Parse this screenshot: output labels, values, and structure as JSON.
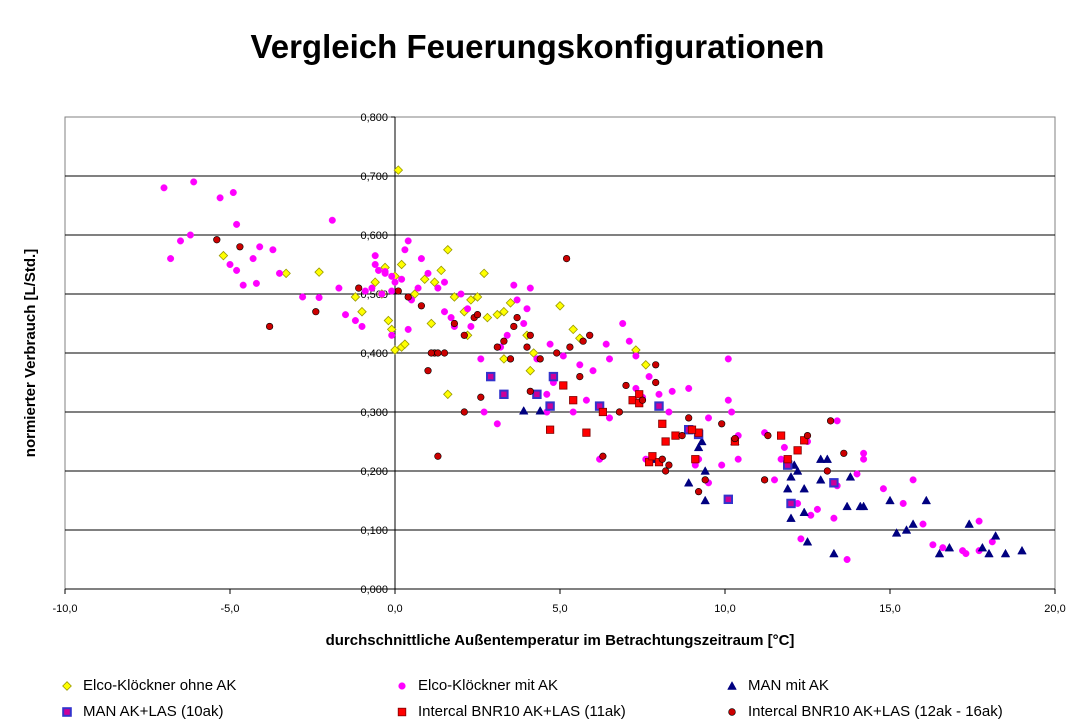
{
  "chart_data": {
    "type": "scatter",
    "title": "Vergleich Feuerungskonfigurationen",
    "xlabel": "durchschnittliche Außentemperatur im Betrachtungszeitraum [°C]",
    "ylabel": "normierter Verbrauch [L/Std.]",
    "xlim": [
      -10,
      20
    ],
    "ylim": [
      0,
      0.8
    ],
    "x_ticks": [
      -10,
      -5,
      0,
      5,
      10,
      15,
      20
    ],
    "x_tick_labels": [
      "-10,0",
      "-5,0",
      "0,0",
      "5,0",
      "10,0",
      "15,0",
      "20,0"
    ],
    "y_ticks": [
      0,
      0.1,
      0.2,
      0.3,
      0.4,
      0.5,
      0.6,
      0.7,
      0.8
    ],
    "y_tick_labels": [
      "0,000",
      "0,100",
      "0,200",
      "0,300",
      "0,400",
      "0,500",
      "0,600",
      "0,700",
      "0,800"
    ],
    "grid": "horizontal",
    "legend_position": "bottom",
    "series": [
      {
        "name": "Elco-Klöckner ohne AK",
        "marker": "diamond",
        "color": "#FFFF00",
        "stroke": "#999900",
        "points": [
          [
            0.1,
            0.71
          ],
          [
            -5.2,
            0.565
          ],
          [
            -3.3,
            0.535
          ],
          [
            -2.3,
            0.537
          ],
          [
            -1.2,
            0.495
          ],
          [
            -0.4,
            0.5
          ],
          [
            -1,
            0.47
          ],
          [
            -0.6,
            0.52
          ],
          [
            -0.3,
            0.545
          ],
          [
            0,
            0.53
          ],
          [
            0.2,
            0.55
          ],
          [
            -0.2,
            0.455
          ],
          [
            -0.1,
            0.44
          ],
          [
            0.2,
            0.41
          ],
          [
            0.3,
            0.415
          ],
          [
            0,
            0.405
          ],
          [
            0.6,
            0.5
          ],
          [
            0.9,
            0.525
          ],
          [
            1.2,
            0.52
          ],
          [
            1.4,
            0.54
          ],
          [
            1.6,
            0.575
          ],
          [
            1.8,
            0.495
          ],
          [
            2.1,
            0.47
          ],
          [
            2.3,
            0.49
          ],
          [
            2.5,
            0.495
          ],
          [
            2.7,
            0.535
          ],
          [
            2.8,
            0.46
          ],
          [
            3.1,
            0.465
          ],
          [
            3.3,
            0.47
          ],
          [
            3.5,
            0.485
          ],
          [
            2.2,
            0.43
          ],
          [
            1.1,
            0.45
          ],
          [
            1.6,
            0.33
          ],
          [
            3.3,
            0.39
          ],
          [
            4,
            0.43
          ],
          [
            4.2,
            0.4
          ],
          [
            4.1,
            0.37
          ],
          [
            5,
            0.48
          ],
          [
            5.4,
            0.44
          ],
          [
            5.6,
            0.425
          ],
          [
            7.3,
            0.405
          ],
          [
            7.6,
            0.38
          ]
        ]
      },
      {
        "name": "Elco-Klöckner mit AK",
        "marker": "circle",
        "color": "#FF00FF",
        "points": [
          [
            -7,
            0.68
          ],
          [
            -6.1,
            0.69
          ],
          [
            -4.9,
            0.672
          ],
          [
            -5.3,
            0.663
          ],
          [
            -6.8,
            0.56
          ],
          [
            -6.5,
            0.59
          ],
          [
            -6.2,
            0.6
          ],
          [
            -4.8,
            0.618
          ],
          [
            -4.8,
            0.54
          ],
          [
            -4.3,
            0.56
          ],
          [
            -4.2,
            0.518
          ],
          [
            -4.6,
            0.515
          ],
          [
            -5,
            0.55
          ],
          [
            -4.1,
            0.58
          ],
          [
            -3.7,
            0.575
          ],
          [
            -3.5,
            0.535
          ],
          [
            -1.9,
            0.625
          ],
          [
            -2.8,
            0.495
          ],
          [
            -2.3,
            0.494
          ],
          [
            -1.5,
            0.465
          ],
          [
            -1.2,
            0.455
          ],
          [
            -0.9,
            0.505
          ],
          [
            -1,
            0.445
          ],
          [
            -0.5,
            0.54
          ],
          [
            -0.3,
            0.538
          ],
          [
            -0.6,
            0.55
          ],
          [
            0.3,
            0.575
          ],
          [
            -0.1,
            0.43
          ],
          [
            0.5,
            0.49
          ],
          [
            0.7,
            0.51
          ],
          [
            1,
            0.535
          ],
          [
            1.3,
            0.51
          ],
          [
            1.7,
            0.46
          ],
          [
            1.8,
            0.445
          ],
          [
            0.4,
            0.44
          ],
          [
            0.4,
            0.59
          ],
          [
            -0.6,
            0.565
          ],
          [
            0.8,
            0.56
          ],
          [
            1.5,
            0.52
          ],
          [
            1.5,
            0.47
          ],
          [
            2,
            0.5
          ],
          [
            2.2,
            0.475
          ],
          [
            2.3,
            0.445
          ],
          [
            2.6,
            0.39
          ],
          [
            2.9,
            0.36
          ],
          [
            3.2,
            0.41
          ],
          [
            3.4,
            0.43
          ],
          [
            3.7,
            0.49
          ],
          [
            3.6,
            0.515
          ],
          [
            3.9,
            0.45
          ],
          [
            4,
            0.475
          ],
          [
            4.1,
            0.51
          ],
          [
            4.3,
            0.39
          ],
          [
            4.7,
            0.415
          ],
          [
            4.8,
            0.35
          ],
          [
            4.6,
            0.33
          ],
          [
            5.1,
            0.395
          ],
          [
            5.6,
            0.38
          ],
          [
            5.8,
            0.32
          ],
          [
            5.9,
            0.43
          ],
          [
            6,
            0.37
          ],
          [
            6.4,
            0.415
          ],
          [
            6.5,
            0.39
          ],
          [
            6.9,
            0.45
          ],
          [
            7.1,
            0.42
          ],
          [
            7.3,
            0.395
          ],
          [
            7.5,
            0.325
          ],
          [
            7.7,
            0.36
          ],
          [
            7.3,
            0.34
          ],
          [
            8,
            0.33
          ],
          [
            8.4,
            0.335
          ],
          [
            8.9,
            0.34
          ],
          [
            9.2,
            0.22
          ],
          [
            9.5,
            0.29
          ],
          [
            9.9,
            0.21
          ],
          [
            10.1,
            0.39
          ],
          [
            10.1,
            0.32
          ],
          [
            10.2,
            0.3
          ],
          [
            10.4,
            0.26
          ],
          [
            11.2,
            0.265
          ],
          [
            11.7,
            0.22
          ],
          [
            11.8,
            0.24
          ],
          [
            12.5,
            0.25
          ],
          [
            13.4,
            0.285
          ],
          [
            13.1,
            0.2
          ],
          [
            13.4,
            0.175
          ],
          [
            12.8,
            0.135
          ],
          [
            12.2,
            0.145
          ],
          [
            12.6,
            0.125
          ],
          [
            13.3,
            0.12
          ],
          [
            14,
            0.195
          ],
          [
            14.2,
            0.22
          ],
          [
            14.2,
            0.23
          ],
          [
            14.8,
            0.17
          ],
          [
            15.7,
            0.185
          ],
          [
            15.4,
            0.145
          ],
          [
            16,
            0.11
          ],
          [
            16.3,
            0.075
          ],
          [
            16.6,
            0.07
          ],
          [
            17.2,
            0.065
          ],
          [
            17.3,
            0.06
          ],
          [
            17.7,
            0.065
          ],
          [
            17.7,
            0.115
          ],
          [
            18.1,
            0.08
          ],
          [
            13.7,
            0.05
          ],
          [
            12.3,
            0.085
          ],
          [
            11.5,
            0.185
          ],
          [
            10.4,
            0.22
          ],
          [
            6.2,
            0.22
          ],
          [
            7.6,
            0.22
          ],
          [
            2.7,
            0.3
          ],
          [
            8.3,
            0.3
          ],
          [
            9.1,
            0.21
          ],
          [
            9.5,
            0.18
          ],
          [
            5.4,
            0.3
          ],
          [
            4.6,
            0.3
          ],
          [
            6.5,
            0.29
          ],
          [
            3.1,
            0.28
          ],
          [
            -0.1,
            0.53
          ],
          [
            -0.3,
            0.535
          ],
          [
            0,
            0.52
          ],
          [
            -0.4,
            0.5
          ],
          [
            -0.1,
            0.505
          ],
          [
            0.2,
            0.525
          ],
          [
            -1.7,
            0.51
          ],
          [
            -0.7,
            0.51
          ]
        ]
      },
      {
        "name": "MAN mit AK",
        "marker": "triangle",
        "color": "#000080",
        "points": [
          [
            3.9,
            0.302
          ],
          [
            4.4,
            0.302
          ],
          [
            7.8,
            0.22
          ],
          [
            9.2,
            0.24
          ],
          [
            9.3,
            0.25
          ],
          [
            8.9,
            0.18
          ],
          [
            9.4,
            0.2
          ],
          [
            9.4,
            0.15
          ],
          [
            10.3,
            0.25
          ],
          [
            12,
            0.19
          ],
          [
            12.2,
            0.2
          ],
          [
            12.1,
            0.21
          ],
          [
            12.4,
            0.13
          ],
          [
            12.5,
            0.08
          ],
          [
            12.9,
            0.185
          ],
          [
            12.9,
            0.22
          ],
          [
            13.1,
            0.22
          ],
          [
            13.7,
            0.14
          ],
          [
            13.8,
            0.19
          ],
          [
            13.3,
            0.06
          ],
          [
            14.1,
            0.14
          ],
          [
            14.2,
            0.14
          ],
          [
            15,
            0.15
          ],
          [
            15.2,
            0.095
          ],
          [
            15.5,
            0.1
          ],
          [
            15.7,
            0.11
          ],
          [
            16.1,
            0.15
          ],
          [
            16.5,
            0.06
          ],
          [
            16.8,
            0.07
          ],
          [
            17.4,
            0.11
          ],
          [
            17.8,
            0.07
          ],
          [
            18,
            0.06
          ],
          [
            18.2,
            0.09
          ],
          [
            18.5,
            0.06
          ],
          [
            19,
            0.065
          ],
          [
            12,
            0.12
          ],
          [
            11.9,
            0.17
          ],
          [
            12.4,
            0.17
          ]
        ]
      },
      {
        "name": "MAN AK+LAS (10ak)",
        "marker": "square",
        "color": "#3333CC",
        "inner": "#CC0099",
        "points": [
          [
            2.9,
            0.36
          ],
          [
            3.3,
            0.33
          ],
          [
            4.3,
            0.33
          ],
          [
            4.7,
            0.31
          ],
          [
            4.8,
            0.36
          ],
          [
            6.2,
            0.31
          ],
          [
            8,
            0.31
          ],
          [
            8.9,
            0.27
          ],
          [
            9.2,
            0.262
          ],
          [
            10.1,
            0.152
          ],
          [
            11.9,
            0.21
          ],
          [
            12,
            0.145
          ],
          [
            13.3,
            0.18
          ]
        ]
      },
      {
        "name": "Intercal BNR10 AK+LAS (11ak)",
        "marker": "square",
        "color": "#FF0000",
        "points": [
          [
            4.7,
            0.27
          ],
          [
            5.4,
            0.32
          ],
          [
            5.8,
            0.265
          ],
          [
            6.3,
            0.3
          ],
          [
            7.2,
            0.32
          ],
          [
            7.4,
            0.33
          ],
          [
            7.7,
            0.215
          ],
          [
            7.8,
            0.225
          ],
          [
            8.1,
            0.28
          ],
          [
            8.2,
            0.25
          ],
          [
            8.5,
            0.26
          ],
          [
            9.1,
            0.22
          ],
          [
            9.2,
            0.265
          ],
          [
            10.3,
            0.25
          ],
          [
            11.7,
            0.26
          ],
          [
            11.9,
            0.22
          ],
          [
            12.2,
            0.235
          ],
          [
            12.4,
            0.252
          ],
          [
            7.4,
            0.315
          ],
          [
            5.1,
            0.345
          ],
          [
            8,
            0.215
          ],
          [
            9,
            0.27
          ]
        ]
      },
      {
        "name": "Intercal BNR10 AK+LAS (12ak - 16ak)",
        "marker": "circle",
        "color": "#CC0000",
        "points": [
          [
            -5.4,
            0.592
          ],
          [
            -4.7,
            0.58
          ],
          [
            -2.4,
            0.47
          ],
          [
            -3.8,
            0.445
          ],
          [
            -1.1,
            0.51
          ],
          [
            0.1,
            0.505
          ],
          [
            0.4,
            0.495
          ],
          [
            1.2,
            0.4
          ],
          [
            1.3,
            0.4
          ],
          [
            1.5,
            0.4
          ],
          [
            2.1,
            0.43
          ],
          [
            2.4,
            0.46
          ],
          [
            2.5,
            0.465
          ],
          [
            2.6,
            0.325
          ],
          [
            3.1,
            0.41
          ],
          [
            3.3,
            0.42
          ],
          [
            3.5,
            0.39
          ],
          [
            3.6,
            0.445
          ],
          [
            3.7,
            0.46
          ],
          [
            4,
            0.41
          ],
          [
            4.1,
            0.43
          ],
          [
            4.4,
            0.39
          ],
          [
            4.9,
            0.4
          ],
          [
            5.2,
            0.56
          ],
          [
            5.3,
            0.41
          ],
          [
            5.6,
            0.36
          ],
          [
            5.7,
            0.42
          ],
          [
            5.9,
            0.43
          ],
          [
            6.3,
            0.225
          ],
          [
            6.8,
            0.3
          ],
          [
            7,
            0.345
          ],
          [
            7.5,
            0.32
          ],
          [
            7.9,
            0.35
          ],
          [
            7.9,
            0.38
          ],
          [
            8.1,
            0.22
          ],
          [
            8.2,
            0.2
          ],
          [
            8.3,
            0.21
          ],
          [
            8.7,
            0.26
          ],
          [
            8.9,
            0.29
          ],
          [
            9.2,
            0.165
          ],
          [
            9.4,
            0.185
          ],
          [
            9.9,
            0.28
          ],
          [
            10.3,
            0.255
          ],
          [
            11.2,
            0.185
          ],
          [
            11.3,
            0.26
          ],
          [
            12.5,
            0.26
          ],
          [
            13.2,
            0.285
          ],
          [
            13.6,
            0.23
          ],
          [
            13.1,
            0.2
          ],
          [
            1,
            0.37
          ],
          [
            1.3,
            0.225
          ],
          [
            2.1,
            0.3
          ],
          [
            1.1,
            0.4
          ],
          [
            4.1,
            0.335
          ],
          [
            1.8,
            0.45
          ],
          [
            0.8,
            0.48
          ]
        ]
      }
    ]
  }
}
